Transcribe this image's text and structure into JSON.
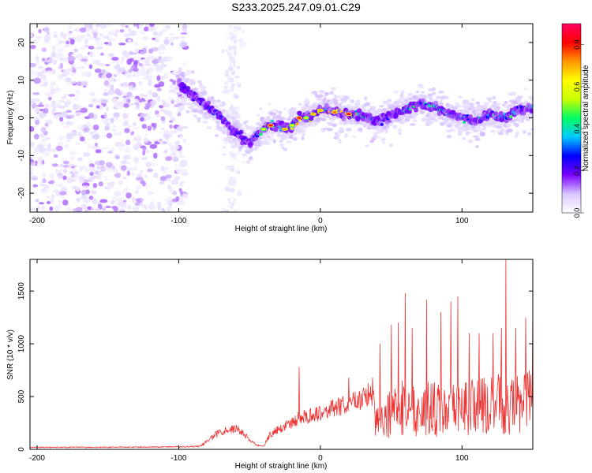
{
  "title": "S233.2025.247.09.01.C29",
  "chart_data": [
    {
      "type": "heatmap",
      "xlabel": "Height of straight line (km)",
      "ylabel": "Frequency (Hz)",
      "xlim": [
        -205,
        150
      ],
      "ylim": [
        -25,
        25
      ],
      "xticks": [
        -200,
        -100,
        0,
        100
      ],
      "yticks": [
        20,
        10,
        0,
        -10,
        -20
      ],
      "colorbar": {
        "label": "Normalized spectral amplitude",
        "range": [
          0,
          0.9
        ],
        "ticks": [
          0.0,
          0.2,
          0.4,
          0.6,
          0.8
        ],
        "colors": [
          "#ffffff",
          "#d8c6ff",
          "#7b00ff",
          "#0000ff",
          "#00c8ff",
          "#00ff64",
          "#c8ff00",
          "#ffff00",
          "#ff9600",
          "#ff0000",
          "#ff0064"
        ]
      },
      "ridge": {
        "x": [
          -100,
          -90,
          -80,
          -70,
          -60,
          -50,
          -45,
          -40,
          -35,
          -30,
          -25,
          -20,
          -15,
          -10,
          -5,
          0,
          10,
          20,
          30,
          40,
          50,
          60,
          70,
          80,
          90,
          100,
          110,
          120,
          130,
          140,
          150
        ],
        "y": [
          9,
          6,
          3,
          0,
          -4,
          -7,
          -4,
          -3,
          -2,
          -2,
          -3,
          -2,
          0,
          0,
          1,
          2,
          1.5,
          1,
          0.5,
          -1,
          0.5,
          2,
          4,
          3,
          1,
          0,
          -1,
          1,
          0,
          2,
          3
        ],
        "peak_amplitude": [
          0.25,
          0.25,
          0.3,
          0.35,
          0.3,
          0.3,
          0.4,
          0.6,
          0.85,
          0.5,
          0.7,
          0.6,
          0.85,
          0.6,
          0.7,
          0.7,
          0.75,
          0.85,
          0.5,
          0.3,
          0.3,
          0.45,
          0.5,
          0.55,
          0.5,
          0.45,
          0.5,
          0.45,
          0.5,
          0.5,
          0.5
        ]
      }
    },
    {
      "type": "line",
      "xlabel": "Height of straight line (km)",
      "ylabel": "SNR (10 * v/v)",
      "xlim": [
        -205,
        150
      ],
      "ylim": [
        0,
        1800
      ],
      "xticks": [
        -200,
        -100,
        0,
        100
      ],
      "yticks": [
        0,
        500,
        1000,
        1500
      ],
      "color": "#ee3333",
      "envelope": {
        "x": [
          -205,
          -150,
          -100,
          -85,
          -80,
          -70,
          -60,
          -55,
          -50,
          -45,
          -40,
          -38,
          -35,
          -30,
          -25,
          -15,
          -10,
          0,
          10,
          20,
          30,
          38,
          40,
          50,
          60,
          70,
          80,
          90,
          100,
          110,
          120,
          130,
          135,
          140,
          150
        ],
        "y": [
          20,
          20,
          25,
          30,
          80,
          180,
          200,
          170,
          90,
          40,
          30,
          90,
          150,
          200,
          220,
          300,
          320,
          360,
          400,
          440,
          500,
          560,
          350,
          420,
          500,
          470,
          480,
          430,
          500,
          520,
          500,
          560,
          520,
          550,
          600
        ]
      },
      "spikes": [
        {
          "x": -15,
          "y": 780
        },
        {
          "x": 20,
          "y": 680
        },
        {
          "x": 37,
          "y": 680
        },
        {
          "x": 42,
          "y": 1000
        },
        {
          "x": 50,
          "y": 1180
        },
        {
          "x": 55,
          "y": 1200
        },
        {
          "x": 60,
          "y": 1480
        },
        {
          "x": 65,
          "y": 1150
        },
        {
          "x": 75,
          "y": 1420
        },
        {
          "x": 85,
          "y": 1300
        },
        {
          "x": 92,
          "y": 1400
        },
        {
          "x": 97,
          "y": 1450
        },
        {
          "x": 105,
          "y": 1100
        },
        {
          "x": 112,
          "y": 1100
        },
        {
          "x": 122,
          "y": 1100
        },
        {
          "x": 128,
          "y": 1150
        },
        {
          "x": 131,
          "y": 1800
        },
        {
          "x": 138,
          "y": 1150
        },
        {
          "x": 145,
          "y": 1250
        },
        {
          "x": 150,
          "y": 1200
        }
      ]
    }
  ]
}
